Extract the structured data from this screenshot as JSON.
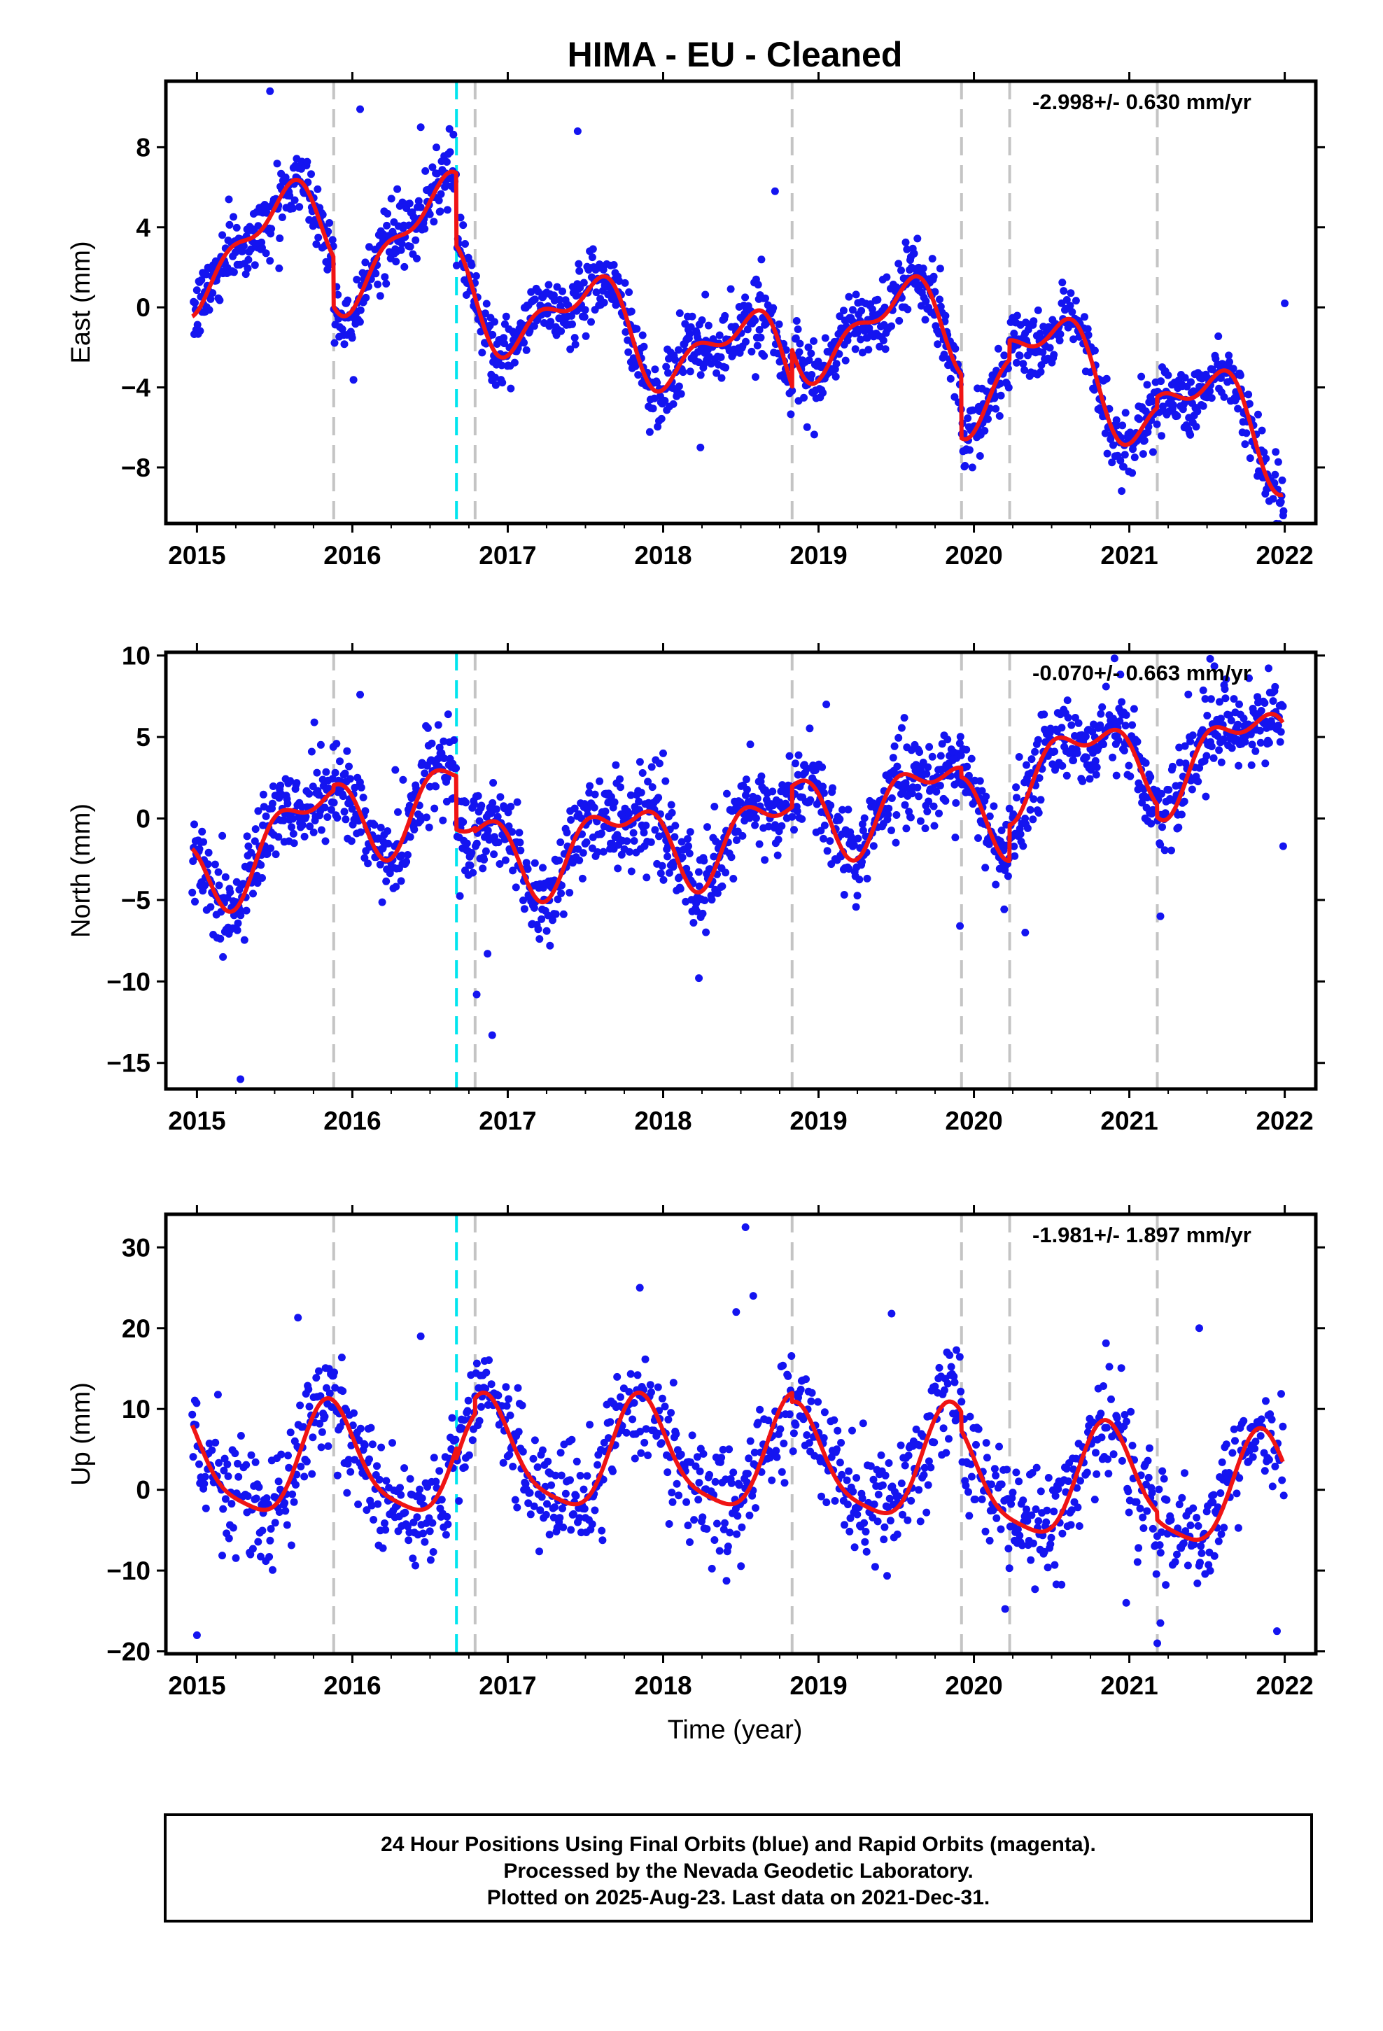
{
  "title": "HIMA  - EU - Cleaned",
  "xlabel": "Time (year)",
  "footer": {
    "lines": [
      "24 Hour Positions Using Final Orbits (blue) and Rapid Orbits (magenta).",
      "Processed by the Nevada Geodetic Laboratory.",
      "Plotted on 2025-Aug-23. Last data on 2021-Dec-31."
    ]
  },
  "colors": {
    "points": "#1414f0",
    "model": "#f01414",
    "event_gray": "#c4c4c4",
    "event_cyan": "#00e5ee",
    "frame": "#000000"
  },
  "chart_data": [
    {
      "type": "scatter",
      "component": "east",
      "ylabel": "East (mm)",
      "rate": "-2.998+/- 0.630 mm/yr",
      "xlim": [
        2014.8,
        2022.2
      ],
      "ylim": [
        -10.8,
        11.3
      ],
      "xticks": [
        "2015",
        "2016",
        "2017",
        "2018",
        "2019",
        "2020",
        "2021",
        "2022"
      ],
      "yticks": [
        "−8",
        "−4",
        "0",
        "4",
        "8"
      ],
      "ytick_values": [
        -8,
        -4,
        0,
        4,
        8
      ],
      "event_lines": {
        "gray_dashed": [
          2015.88,
          2016.79,
          2018.83,
          2019.92,
          2020.23,
          2021.18
        ],
        "cyan_dashed": [
          2016.67
        ]
      },
      "model": {
        "amp1": 2.0,
        "amp2": 1.0,
        "phase1": 0.28,
        "phase2": 0.05,
        "segments": [
          {
            "x0": 2014.97,
            "x1": 2015.88,
            "offset": 2.25,
            "rate": 2.5
          },
          {
            "x0": 2015.88,
            "x1": 2016.67,
            "offset": 2.05,
            "rate": 3.0
          },
          {
            "x0": 2016.67,
            "x1": 2016.79,
            "offset": 0.8,
            "rate": -2.5
          },
          {
            "x0": 2016.79,
            "x1": 2018.83,
            "offset": 0.5,
            "rate": -1.7
          },
          {
            "x0": 2018.83,
            "x1": 2019.92,
            "offset": -1.15,
            "rate": 0.3
          },
          {
            "x0": 2019.92,
            "x1": 2020.23,
            "offset": -4.0,
            "rate": 4.0
          },
          {
            "x0": 2020.23,
            "x1": 2021.18,
            "offset": -1.8,
            "rate": -3.2
          },
          {
            "x0": 2021.18,
            "x1": 2021.99,
            "offset": -4.3,
            "rate": -3.0
          }
        ]
      },
      "noise": 0.85,
      "spacing": 0.0042,
      "outliers": [
        [
          2015.47,
          10.8
        ],
        [
          2016.05,
          9.9
        ],
        [
          2016.44,
          9.0
        ],
        [
          2017.45,
          8.8
        ],
        [
          2018.72,
          5.8
        ],
        [
          2019.99,
          -8.0
        ],
        [
          2021.99,
          -10.4
        ],
        [
          2022.0,
          0.2
        ],
        [
          2018.24,
          -7.0
        ]
      ]
    },
    {
      "type": "scatter",
      "component": "north",
      "ylabel": "North (mm)",
      "rate": "-0.070+/- 0.663 mm/yr",
      "xlim": [
        2014.8,
        2022.2
      ],
      "ylim": [
        -16.6,
        10.2
      ],
      "xticks": [
        "2015",
        "2016",
        "2017",
        "2018",
        "2019",
        "2020",
        "2021",
        "2022"
      ],
      "yticks": [
        "−15",
        "−10",
        "−5",
        "0",
        "5",
        "10"
      ],
      "ytick_values": [
        -15,
        -10,
        -5,
        0,
        5,
        10
      ],
      "event_lines": {
        "gray_dashed": [
          2015.88,
          2016.79,
          2018.83,
          2019.92,
          2020.23,
          2021.18
        ],
        "cyan_dashed": [
          2016.67
        ]
      },
      "model": {
        "amp1": 2.2,
        "amp2": 1.2,
        "phase1": 0.48,
        "phase2": 0.35,
        "segments": [
          {
            "x0": 2014.97,
            "x1": 2015.88,
            "offset": -3.2,
            "rate": 3.5
          },
          {
            "x0": 2015.88,
            "x1": 2016.67,
            "offset": 0.3,
            "rate": 1.5
          },
          {
            "x0": 2016.67,
            "x1": 2016.79,
            "offset": -1.8,
            "rate": 0.0
          },
          {
            "x0": 2016.79,
            "x1": 2018.83,
            "offset": -2.0,
            "rate": 0.6
          },
          {
            "x0": 2018.83,
            "x1": 2019.92,
            "offset": 0.5,
            "rate": 0.8
          },
          {
            "x0": 2019.92,
            "x1": 2020.23,
            "offset": 0.8,
            "rate": 0.0
          },
          {
            "x0": 2020.23,
            "x1": 2021.18,
            "offset": 3.0,
            "rate": 1.0
          },
          {
            "x0": 2021.18,
            "x1": 2021.99,
            "offset": 3.2,
            "rate": 2.0
          }
        ]
      },
      "noise": 1.35,
      "spacing": 0.0042,
      "outliers": [
        [
          2015.28,
          -16.0
        ],
        [
          2016.05,
          7.6
        ],
        [
          2016.9,
          -13.3
        ],
        [
          2016.8,
          -10.8
        ],
        [
          2016.87,
          -8.3
        ],
        [
          2018.23,
          -9.8
        ],
        [
          2019.91,
          -6.6
        ],
        [
          2020.33,
          -7.0
        ],
        [
          2021.2,
          -6.0
        ],
        [
          2021.99,
          -1.7
        ],
        [
          2021.52,
          9.8
        ],
        [
          2019.05,
          7.0
        ],
        [
          2018.0,
          4.0
        ]
      ]
    },
    {
      "type": "scatter",
      "component": "up",
      "ylabel": "Up (mm)",
      "rate": "-1.981+/- 1.897 mm/yr",
      "xlim": [
        2014.8,
        2022.2
      ],
      "ylim": [
        -20.3,
        34.1
      ],
      "xticks": [
        "2015",
        "2016",
        "2017",
        "2018",
        "2019",
        "2020",
        "2021",
        "2022"
      ],
      "yticks": [
        "−20",
        "−10",
        "0",
        "10",
        "20",
        "30"
      ],
      "ytick_values": [
        -20,
        -10,
        0,
        10,
        20,
        30
      ],
      "event_lines": {
        "gray_dashed": [
          2015.88,
          2016.79,
          2018.83,
          2019.92,
          2020.23,
          2021.18
        ],
        "cyan_dashed": [
          2016.67
        ]
      },
      "model": {
        "amp1": 6.7,
        "amp2": 1.5,
        "phase1": 0.61,
        "phase2": 0.2,
        "segments": [
          {
            "x0": 2014.97,
            "x1": 2016.67,
            "offset": 3.2,
            "rate": 0.0
          },
          {
            "x0": 2016.67,
            "x1": 2016.79,
            "offset": 2.0,
            "rate": 0.0
          },
          {
            "x0": 2016.79,
            "x1": 2018.83,
            "offset": 3.9,
            "rate": 0.0
          },
          {
            "x0": 2018.83,
            "x1": 2019.92,
            "offset": 2.8,
            "rate": 0.0
          },
          {
            "x0": 2019.92,
            "x1": 2020.23,
            "offset": 0.5,
            "rate": 0.0
          },
          {
            "x0": 2020.23,
            "x1": 2021.18,
            "offset": 0.5,
            "rate": 0.0
          },
          {
            "x0": 2021.18,
            "x1": 2021.99,
            "offset": -0.5,
            "rate": 0.0
          }
        ]
      },
      "noise": 3.4,
      "spacing": 0.0055,
      "outliers": [
        [
          2015.0,
          -18.0
        ],
        [
          2015.65,
          21.3
        ],
        [
          2016.44,
          19.0
        ],
        [
          2017.85,
          25.0
        ],
        [
          2018.53,
          32.5
        ],
        [
          2018.58,
          24.0
        ],
        [
          2018.47,
          22.0
        ],
        [
          2019.47,
          21.8
        ],
        [
          2021.18,
          -19.0
        ],
        [
          2021.95,
          -17.5
        ],
        [
          2021.45,
          20.0
        ],
        [
          2020.98,
          -14.0
        ],
        [
          2021.2,
          -16.5
        ]
      ]
    }
  ]
}
